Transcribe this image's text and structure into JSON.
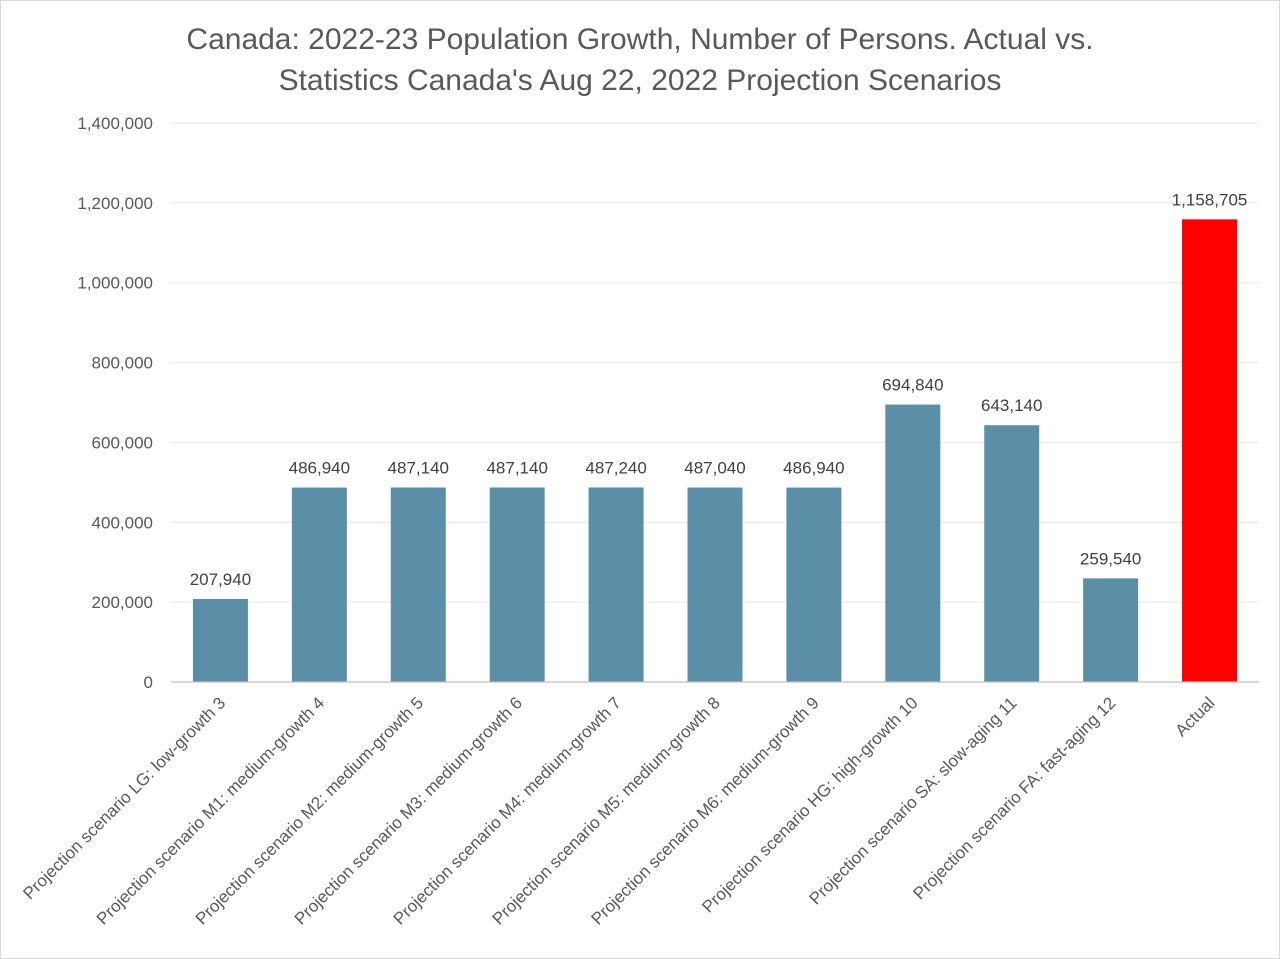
{
  "chart_data": {
    "type": "bar",
    "title": "Canada: 2022-23 Population Growth, Number of Persons. Actual vs. Statistics Canada's Aug 22, 2022 Projection Scenarios",
    "title_lines": [
      "Canada: 2022-23 Population Growth, Number of Persons. Actual vs.",
      "Statistics Canada's Aug 22, 2022 Projection Scenarios"
    ],
    "xlabel": "",
    "ylabel": "",
    "ylim": [
      0,
      1400000
    ],
    "yticks": [
      0,
      200000,
      400000,
      600000,
      800000,
      1000000,
      1200000,
      1400000
    ],
    "ytick_labels": [
      "0",
      "200,000",
      "400,000",
      "600,000",
      "800,000",
      "1,000,000",
      "1,200,000",
      "1,400,000"
    ],
    "grid": true,
    "legend": "none",
    "categories": [
      "Projection scenario LG: low-growth 3",
      "Projection scenario M1: medium-growth 4",
      "Projection scenario M2: medium-growth 5",
      "Projection scenario M3: medium-growth 6",
      "Projection scenario M4: medium-growth 7",
      "Projection scenario M5: medium-growth 8",
      "Projection scenario M6: medium-growth 9",
      "Projection scenario HG: high-growth 10",
      "Projection scenario SA: slow-aging 11",
      "Projection scenario FA: fast-aging 12",
      "Actual"
    ],
    "values": [
      207940,
      486940,
      487140,
      487140,
      487240,
      487040,
      486940,
      694840,
      643140,
      259540,
      1158705
    ],
    "data_labels": [
      "207,940",
      "486,940",
      "487,140",
      "487,140",
      "487,240",
      "487,040",
      "486,940",
      "694,840",
      "643,140",
      "259,540",
      "1,158,705"
    ],
    "colors": {
      "projection": "#5b8fa8",
      "actual": "#ff0000",
      "gridline": "#e6e6e6",
      "axis": "#bfbfbf",
      "text": "#595959"
    }
  }
}
